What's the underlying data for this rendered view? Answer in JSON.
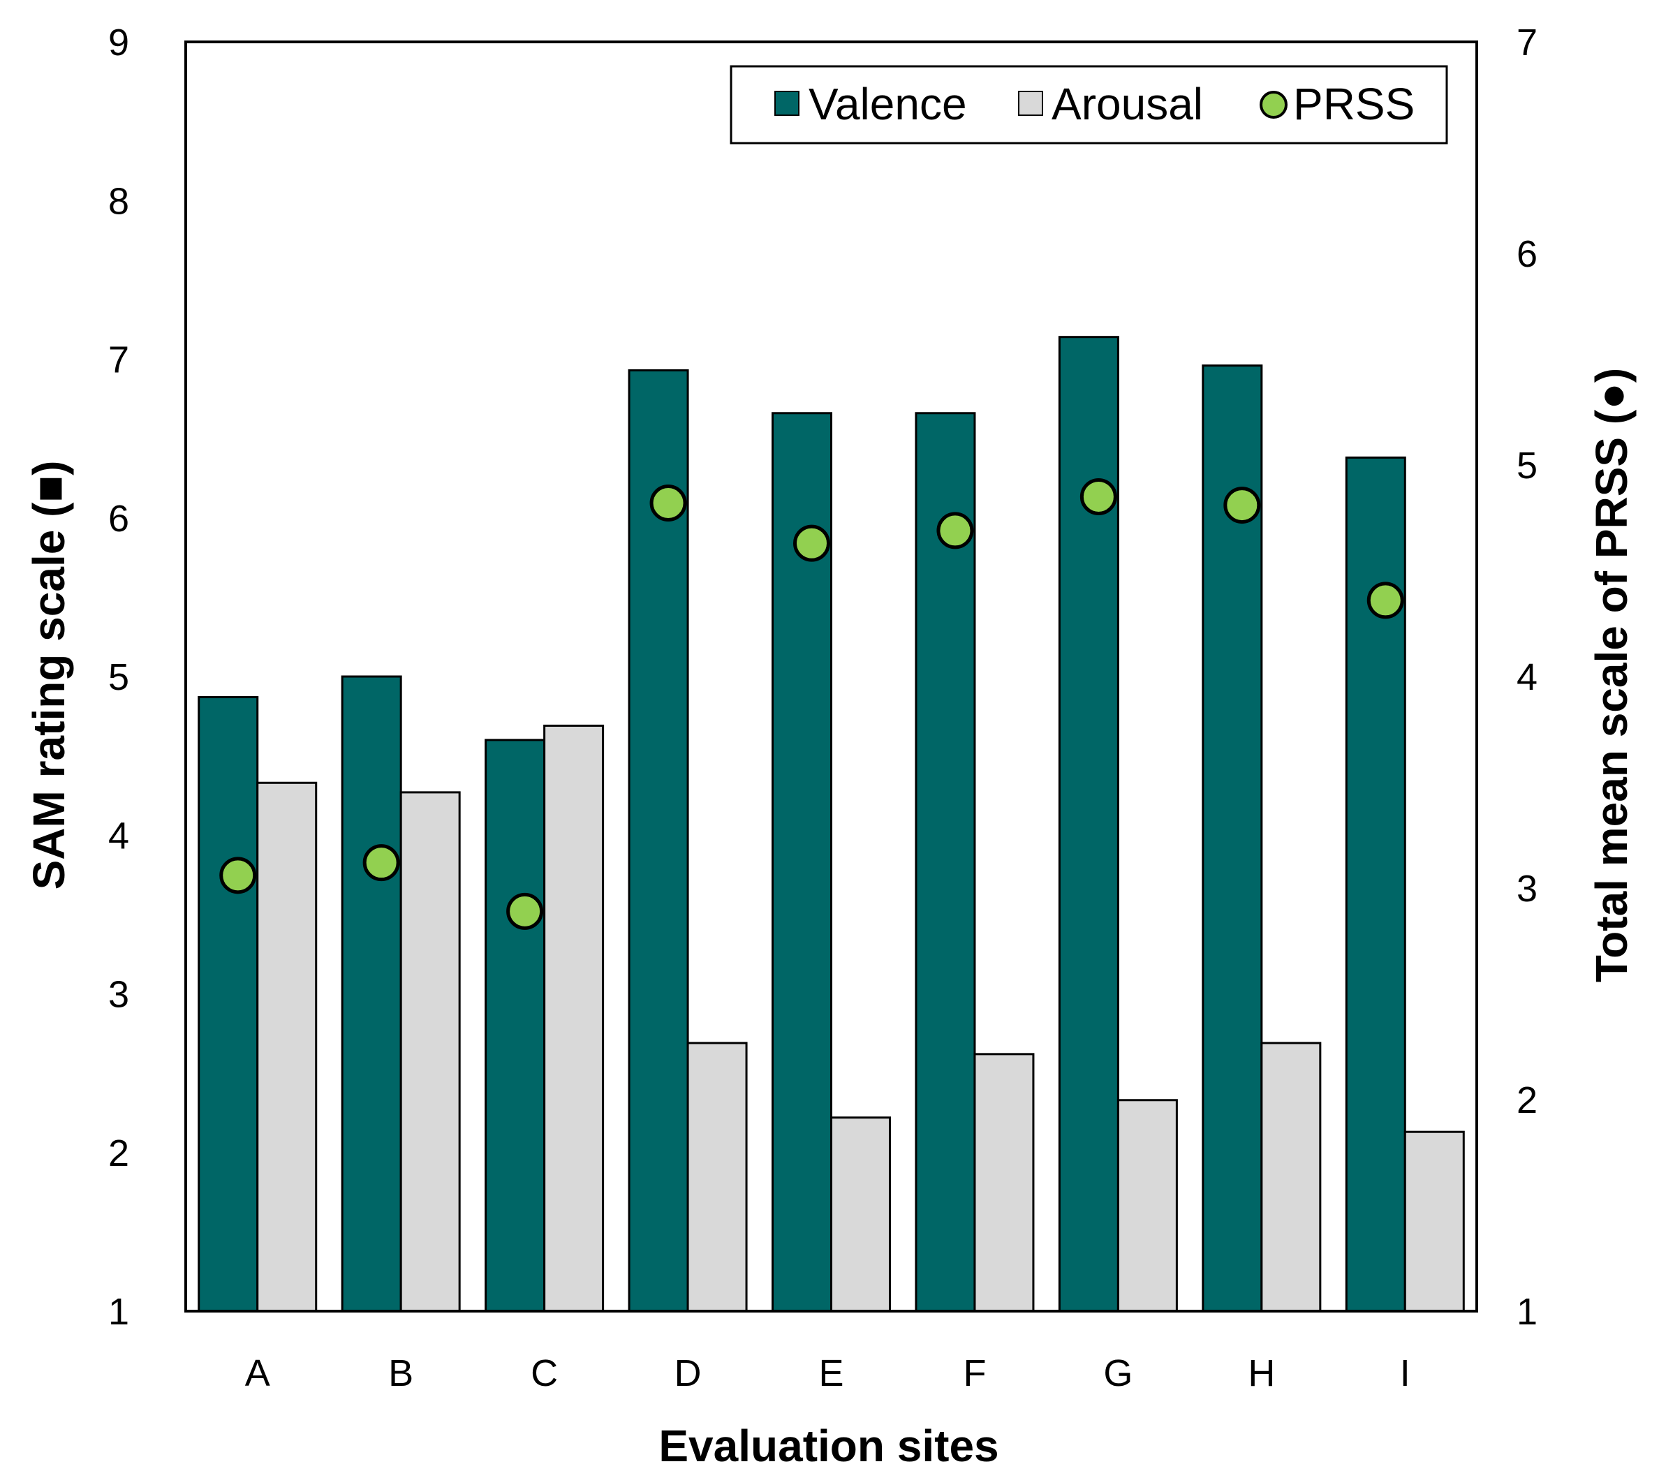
{
  "chart_data": {
    "type": "bar",
    "title": "",
    "categories": [
      "A",
      "B",
      "C",
      "D",
      "E",
      "F",
      "G",
      "H",
      "I"
    ],
    "series": [
      {
        "name": "Valence",
        "kind": "bar",
        "axis": "left",
        "color": "#006666",
        "values": [
          4.87,
          5.0,
          4.6,
          6.93,
          6.66,
          6.66,
          7.14,
          6.96,
          6.38
        ]
      },
      {
        "name": "Arousal",
        "kind": "bar",
        "axis": "left",
        "color": "#d9d9d9",
        "values": [
          4.33,
          4.27,
          4.69,
          2.69,
          2.22,
          2.62,
          2.33,
          2.69,
          2.13
        ]
      },
      {
        "name": "PRSS",
        "kind": "marker",
        "axis": "right",
        "color": "#92d050",
        "values": [
          3.06,
          3.12,
          2.89,
          4.82,
          4.63,
          4.69,
          4.85,
          4.81,
          4.36
        ]
      }
    ],
    "xlabel": "Evaluation sites",
    "ylabel": "SAM rating scale (■)",
    "y2label": "Total mean scale of PRSS (●)",
    "ylim": [
      1,
      9
    ],
    "y2lim": [
      1,
      7
    ],
    "yticks": [
      "1",
      "2",
      "3",
      "4",
      "5",
      "6",
      "7",
      "8",
      "9"
    ],
    "y2ticks": [
      "1",
      "2",
      "3",
      "4",
      "5",
      "6",
      "7"
    ],
    "grid": false,
    "legend_position": "top-right",
    "legend": [
      "Valence",
      "Arousal",
      "PRSS"
    ]
  }
}
